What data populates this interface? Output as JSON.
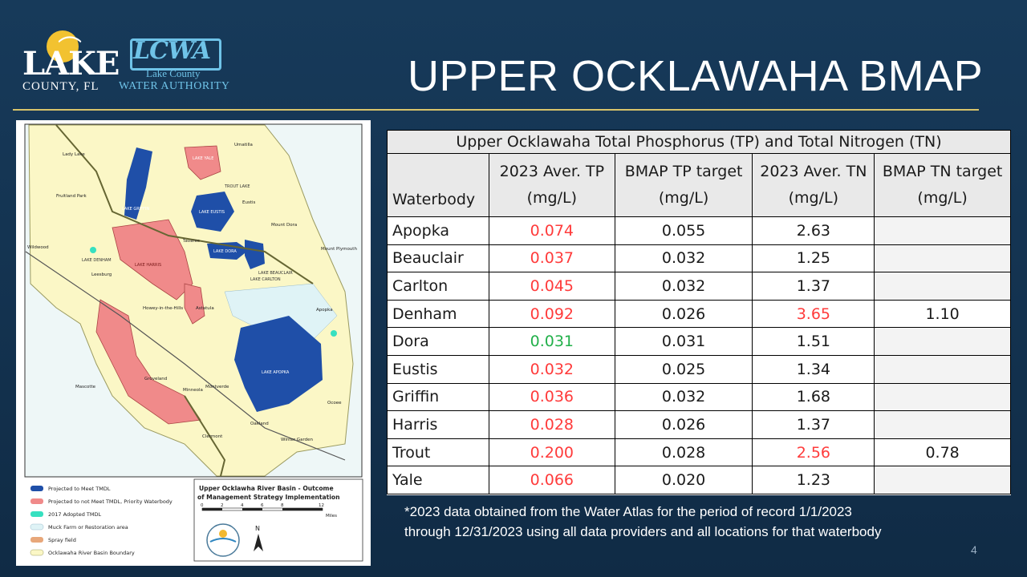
{
  "logos": {
    "lake_county_word": "LAKE",
    "lake_county_sub": "COUNTY, FL",
    "lcwa_abbr": "LCWA",
    "lcwa_sub1": "Lake County",
    "lcwa_sub2": "WATER AUTHORITY"
  },
  "slide": {
    "title": "UPPER OCKLAWAHA BMAP",
    "page_number": "4"
  },
  "map": {
    "lake_labels": [
      "LAKE GRIFFIN",
      "LAKE EUSTIS",
      "LAKE YALE",
      "LAKE HARRIS",
      "LAKE DORA",
      "LAKE APOPKA",
      "LAKE DENHAM",
      "LAKE CARLTON",
      "LAKE BEAUCLAIR",
      "TROUT LAKE"
    ],
    "place_labels": [
      "Lady Lake",
      "Fruitland Park",
      "Umatilla",
      "Eustis",
      "Mount Dora",
      "Tavares",
      "Leesburg",
      "Wildwood",
      "Howey-in-the-Hills",
      "Astatula",
      "Apopka",
      "Mount Plymouth",
      "Mascotte",
      "Groveland",
      "Minneola",
      "Montverde",
      "Clermont",
      "Oakland",
      "Winter Garden",
      "Ocoee"
    ],
    "legend": [
      {
        "label": "Projected to Meet TMDL",
        "color": "#1f4fa8"
      },
      {
        "label": "Projected to not Meet TMDL, Priority Waterbody",
        "color": "#f08a8a"
      },
      {
        "label": "2017 Adopted TMDL",
        "color": "#36e0c0"
      },
      {
        "label": "Muck Farm or Restoration area",
        "color": "#dff3f6"
      },
      {
        "label": "Spray field",
        "color": "#e8a77a"
      },
      {
        "label": "Ocklawaha River Basin Boundary",
        "color": "#fbf7c6"
      }
    ],
    "map_title": "Upper Ocklawha River Basin - Outcome of Management Strategy Implementation",
    "scale_ticks": [
      "0",
      "2",
      "4",
      "6",
      "8",
      "12"
    ],
    "scale_unit": "Miles",
    "north_label": "N"
  },
  "table": {
    "caption": "Upper Ocklawaha Total Phosphorus (TP) and Total Nitrogen (TN)",
    "headers": [
      {
        "line1": "",
        "line2": "Waterbody"
      },
      {
        "line1": "2023 Aver. TP",
        "line2": "(mg/L)"
      },
      {
        "line1": "BMAP TP target",
        "line2": "(mg/L)"
      },
      {
        "line1": "2023 Aver. TN",
        "line2": "(mg/L)"
      },
      {
        "line1": "BMAP TN target",
        "line2": "(mg/L)"
      }
    ],
    "rows": [
      {
        "name": "Apopka",
        "tp": "0.074",
        "tp_target": "0.055",
        "tn": "2.63",
        "tn_target": "",
        "tp_status": "red",
        "tn_status": ""
      },
      {
        "name": "Beauclair",
        "tp": "0.037",
        "tp_target": "0.032",
        "tn": "1.25",
        "tn_target": "",
        "tp_status": "red",
        "tn_status": ""
      },
      {
        "name": "Carlton",
        "tp": "0.045",
        "tp_target": "0.032",
        "tn": "1.37",
        "tn_target": "",
        "tp_status": "red",
        "tn_status": ""
      },
      {
        "name": "Denham",
        "tp": "0.092",
        "tp_target": "0.026",
        "tn": "3.65",
        "tn_target": "1.10",
        "tp_status": "red",
        "tn_status": "red"
      },
      {
        "name": "Dora",
        "tp": "0.031",
        "tp_target": "0.031",
        "tn": "1.51",
        "tn_target": "",
        "tp_status": "green",
        "tn_status": ""
      },
      {
        "name": "Eustis",
        "tp": "0.032",
        "tp_target": "0.025",
        "tn": "1.34",
        "tn_target": "",
        "tp_status": "red",
        "tn_status": ""
      },
      {
        "name": "Griffin",
        "tp": "0.036",
        "tp_target": "0.032",
        "tn": "1.68",
        "tn_target": "",
        "tp_status": "red",
        "tn_status": ""
      },
      {
        "name": "Harris",
        "tp": "0.028",
        "tp_target": "0.026",
        "tn": "1.37",
        "tn_target": "",
        "tp_status": "red",
        "tn_status": ""
      },
      {
        "name": "Trout",
        "tp": "0.200",
        "tp_target": "0.028",
        "tn": "2.56",
        "tn_target": "0.78",
        "tp_status": "red",
        "tn_status": "red"
      },
      {
        "name": "Yale",
        "tp": "0.066",
        "tp_target": "0.020",
        "tn": "1.23",
        "tn_target": "",
        "tp_status": "red",
        "tn_status": ""
      }
    ]
  },
  "footnote": {
    "line1": "*2023 data obtained from the Water Atlas for the period of record 1/1/2023",
    "line2": "through 12/31/2023 using all data providers and all locations for that waterbody"
  },
  "colors": {
    "background": "#13324f",
    "rule": "#d9c46a",
    "exceed_red": "#ff3b3b",
    "meet_green": "#22b04a"
  }
}
